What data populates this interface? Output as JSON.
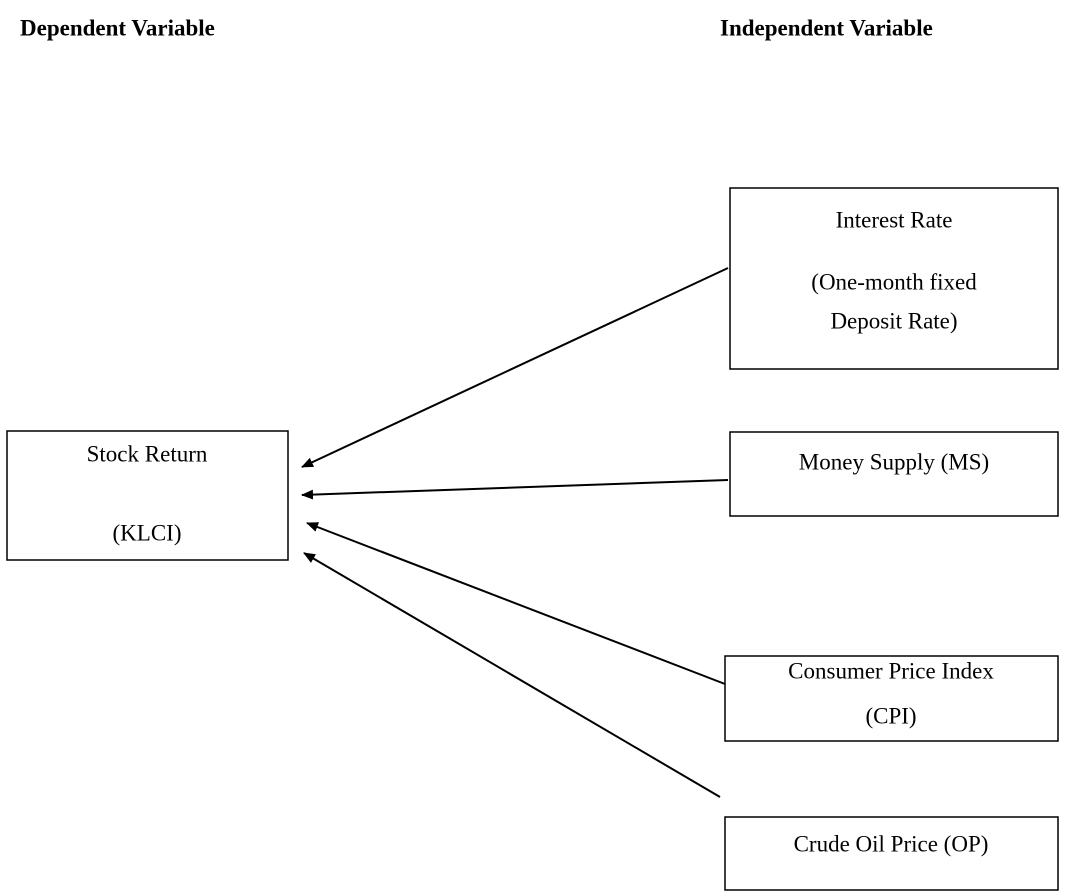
{
  "headers": {
    "dependent": "Dependent Variable",
    "independent": "Independent Variable"
  },
  "nodes": [
    {
      "lines": [
        "Stock Return",
        "(KLCI)"
      ]
    },
    {
      "lines": [
        "Interest Rate",
        "(One-month fixed",
        "Deposit Rate)"
      ]
    },
    {
      "lines": [
        "Money Supply (MS)"
      ]
    },
    {
      "lines": [
        "Consumer Price Index",
        "(CPI)"
      ]
    },
    {
      "lines": [
        "Crude Oil Price (OP)"
      ]
    }
  ]
}
